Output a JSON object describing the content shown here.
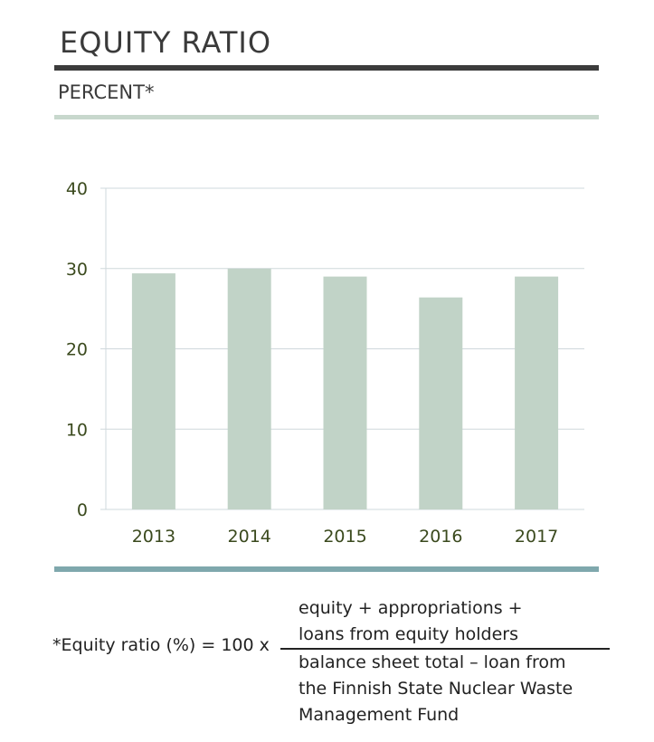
{
  "title": "EQUITY RATIO",
  "subtitle": "PERCENT*",
  "colors": {
    "title_rule": "#3c3c3c",
    "subtitle_rule": "#c8d8cd",
    "bar": "#c1d3c7",
    "grid": "#cfd8dc",
    "bottom_rule": "#7fa8ad",
    "tick_text": "#3b4a1e"
  },
  "chart_data": {
    "type": "bar",
    "categories": [
      "2013",
      "2014",
      "2015",
      "2016",
      "2017"
    ],
    "values": [
      29.4,
      30.0,
      29.0,
      26.4,
      29.0
    ],
    "ylim": [
      0,
      40
    ],
    "yticks": [
      "0",
      "10",
      "20",
      "30",
      "40"
    ],
    "grid": true
  },
  "formula": {
    "lhs": "*Equity ratio (%) = 100 x",
    "numerator": [
      "equity + appropriations +",
      "loans from equity holders"
    ],
    "denominator": [
      "balance sheet total – loan from",
      "the Finnish State Nuclear Waste",
      "Management Fund"
    ]
  }
}
